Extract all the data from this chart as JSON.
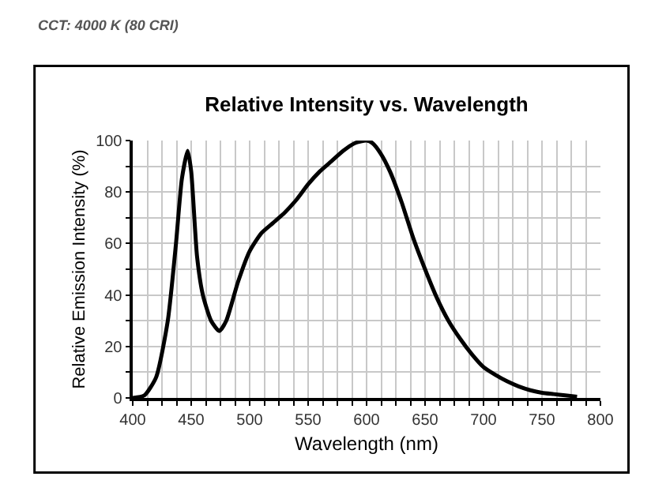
{
  "chart_data": {
    "type": "line",
    "title": "Relative Intensity vs. Wavelength",
    "subtitle": "CCT: 4000 K (80 CRI)",
    "xlabel": "Wavelength (nm)",
    "ylabel": "Relative Emission Intensity (%)",
    "x": [
      400,
      410,
      420,
      430,
      437,
      442,
      447,
      450,
      455,
      460,
      467,
      474,
      480,
      490,
      500,
      510,
      520,
      530,
      540,
      550,
      560,
      570,
      580,
      590,
      600,
      605,
      612,
      620,
      630,
      640,
      650,
      660,
      670,
      680,
      690,
      700,
      710,
      720,
      730,
      740,
      750,
      760,
      770,
      780
    ],
    "series": [
      {
        "color": "#000000",
        "values": [
          0,
          1,
          8,
          30,
          60,
          85,
          96,
          88,
          55,
          40,
          30,
          26,
          30,
          45,
          57,
          64,
          68,
          72,
          77,
          83,
          88,
          92,
          96,
          99,
          100,
          99,
          95,
          88,
          76,
          62,
          50,
          39,
          30,
          23,
          17,
          12,
          9,
          6.5,
          4.5,
          3,
          2,
          1.5,
          1,
          0.5
        ]
      }
    ],
    "xlim": [
      400,
      800
    ],
    "ylim": [
      0,
      100
    ],
    "xticks": [
      400,
      {
        "value": 412.5,
        "label": null
      },
      {
        "value": 425,
        "label": null
      },
      {
        "value": 437.5,
        "label": null
      },
      450,
      {
        "value": 462.5,
        "label": null
      },
      {
        "value": 475,
        "label": null
      },
      {
        "value": 487.5,
        "label": null
      },
      500,
      {
        "value": 512.5,
        "label": null
      },
      {
        "value": 525,
        "label": null
      },
      {
        "value": 537.5,
        "label": null
      },
      550,
      {
        "value": 562.5,
        "label": null
      },
      {
        "value": 575,
        "label": null
      },
      {
        "value": 587.5,
        "label": null
      },
      600,
      {
        "value": 612.5,
        "label": null
      },
      {
        "value": 625,
        "label": null
      },
      {
        "value": 637.5,
        "label": null
      },
      650,
      {
        "value": 662.5,
        "label": null
      },
      {
        "value": 675,
        "label": null
      },
      {
        "value": 687.5,
        "label": null
      },
      700,
      {
        "value": 712.5,
        "label": null
      },
      {
        "value": 725,
        "label": null
      },
      {
        "value": 737.5,
        "label": null
      },
      750,
      {
        "value": 762.5,
        "label": null
      },
      {
        "value": 775,
        "label": null
      },
      {
        "value": 787.5,
        "label": null
      },
      800
    ],
    "yticks": [
      0,
      {
        "value": 10,
        "label": null
      },
      20,
      {
        "value": 30,
        "label": null
      },
      40,
      {
        "value": 50,
        "label": null
      },
      60,
      {
        "value": 70,
        "label": null
      },
      80,
      {
        "value": 90,
        "label": null
      },
      100
    ],
    "grid": true,
    "legend": false,
    "marker": "none",
    "line_style": "solid"
  }
}
